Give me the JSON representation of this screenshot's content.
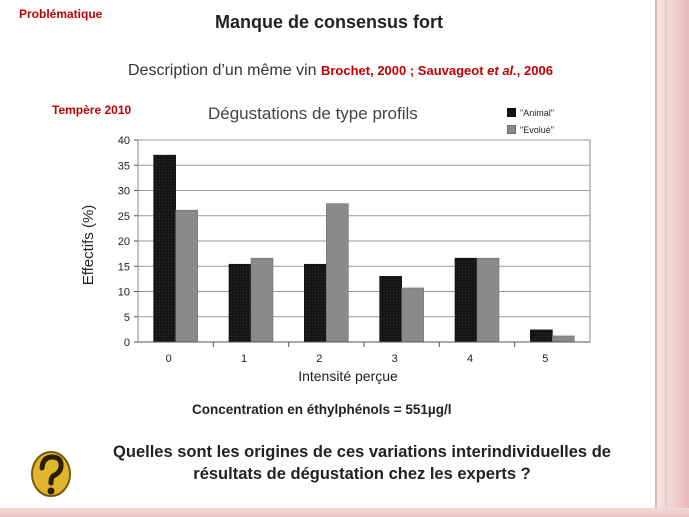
{
  "slide": {
    "problematique": "Problématique",
    "title": "Manque de consensus fort",
    "description": "Description d’un même vin",
    "citation_part1": "Brochet, 2000 ; Sauvageot ",
    "citation_etal": "et al.",
    "citation_part2": ", 2006",
    "tempere": "Tempère 2010",
    "concentration": "Concentration en éthylphénols = 551µg/l",
    "question": "Quelles sont les origines de ces variations interindividuelles de résultats de dégustation chez les experts ?",
    "icon": "question-mark-icon"
  },
  "chart_data": {
    "type": "bar",
    "title": "Dégustations de type profils",
    "xlabel": "Intensité perçue",
    "ylabel": "Effectifs (%)",
    "categories": [
      "0",
      "1",
      "2",
      "3",
      "4",
      "5"
    ],
    "ylim": [
      0,
      40
    ],
    "yticks": [
      "0",
      "5",
      "10",
      "15",
      "20",
      "25",
      "30",
      "35",
      "40"
    ],
    "grid": true,
    "legend_position": "top-right",
    "series": [
      {
        "name": "\"Animal\"",
        "color": "#151515",
        "values": [
          37,
          15.4,
          15.4,
          13,
          16.6,
          2.4
        ]
      },
      {
        "name": "\"Evolué\"",
        "color": "#8a8a8a",
        "values": [
          26.1,
          16.6,
          27.4,
          10.7,
          16.6,
          1.2
        ]
      }
    ]
  }
}
